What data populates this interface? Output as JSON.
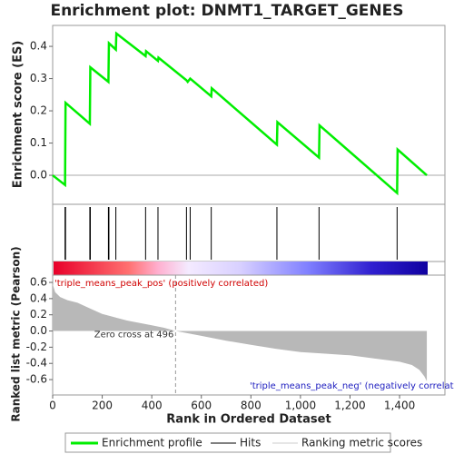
{
  "chart_data": [
    {
      "type": "line",
      "title": "Enrichment plot: DNMT1_TARGET_GENES",
      "ylabel": "Enrichment score (ES)",
      "xlim": [
        0,
        1583
      ],
      "ylim": [
        -0.09,
        0.465
      ],
      "yticks": [
        {
          "value": 0,
          "label": "0.0"
        },
        0.1,
        0.2,
        0.3,
        0.4
      ],
      "series": [
        {
          "name": "Enrichment profile",
          "color": "#00ee00",
          "x": [
            0,
            50,
            52,
            150,
            152,
            225,
            227,
            255,
            257,
            375,
            377,
            425,
            427,
            540,
            545,
            555,
            640,
            642,
            905,
            907,
            1075,
            1077,
            1390,
            1392,
            1510
          ],
          "values": [
            0,
            -0.03,
            0.225,
            0.16,
            0.335,
            0.29,
            0.41,
            0.39,
            0.44,
            0.37,
            0.385,
            0.355,
            0.365,
            0.295,
            0.29,
            0.3,
            0.245,
            0.27,
            0.095,
            0.165,
            0.055,
            0.155,
            -0.055,
            0.08,
            0
          ]
        }
      ],
      "hits": {
        "name": "Hits",
        "color": "#000000",
        "x": [
          50,
          52,
          150,
          152,
          225,
          227,
          255,
          375,
          425,
          540,
          555,
          640,
          905,
          1075,
          1390
        ]
      }
    },
    {
      "type": "area",
      "ylabel": "Ranked list metric (Pearson)",
      "xlabel": "Rank in Ordered Dataset",
      "xlim": [
        0,
        1583
      ],
      "ylim": [
        -0.79,
        0.69
      ],
      "yticks": [
        0.6,
        0.4,
        0.2,
        {
          "value": 0,
          "label": "0.0"
        },
        -0.2,
        -0.4,
        -0.6
      ],
      "xticks": [
        0,
        200,
        400,
        600,
        800,
        {
          "value": 1000,
          "label": "1,000"
        },
        {
          "value": 1200,
          "label": "1,200"
        },
        {
          "value": 1400,
          "label": "1,400"
        }
      ],
      "series": [
        {
          "name": "Ranking metric scores",
          "color": "#b8b8b8",
          "x": [
            0,
            10,
            30,
            60,
            100,
            150,
            200,
            250,
            300,
            350,
            400,
            450,
            496,
            600,
            700,
            800,
            900,
            1000,
            1100,
            1200,
            1300,
            1400,
            1450,
            1480,
            1500,
            1510
          ],
          "values": [
            0.58,
            0.48,
            0.42,
            0.38,
            0.35,
            0.28,
            0.21,
            0.17,
            0.13,
            0.1,
            0.07,
            0.04,
            0,
            -0.06,
            -0.12,
            -0.17,
            -0.22,
            -0.26,
            -0.28,
            -0.3,
            -0.34,
            -0.38,
            -0.42,
            -0.48,
            -0.56,
            -0.62
          ]
        }
      ],
      "pos_label": "'triple_means_peak_pos' (positively correlated)",
      "neg_label": "'triple_means_peak_neg' (negatively correlat",
      "zero_cross": {
        "value": 496,
        "label": "Zero cross at 496"
      }
    }
  ]
}
